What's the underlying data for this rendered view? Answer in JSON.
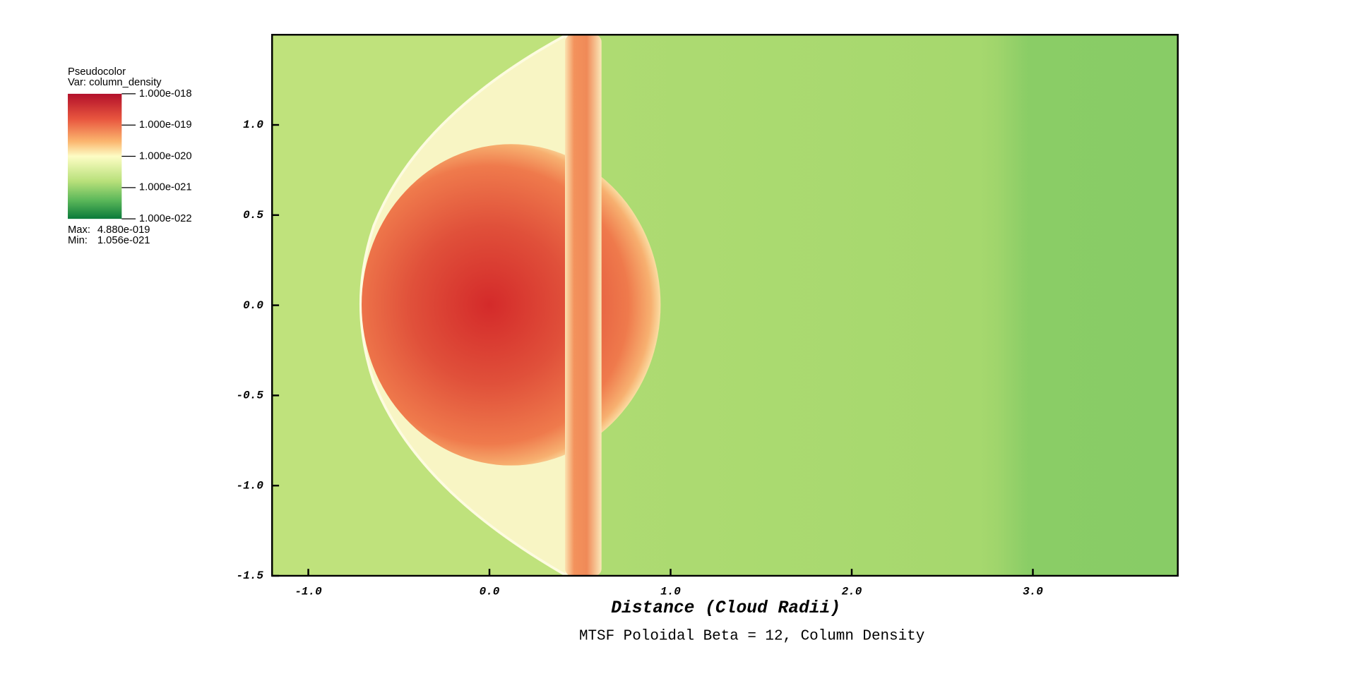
{
  "chart_data": {
    "type": "pseudocolor",
    "title": "MTSF Poloidal Beta = 12, Column Density",
    "xlabel": "Distance (Cloud Radii)",
    "xlim": [
      -1.2,
      3.8
    ],
    "ylim": [
      -1.5,
      1.5
    ],
    "xticks": [
      {
        "value": -1,
        "label": "-1.0"
      },
      {
        "value": 0,
        "label": "0.0"
      },
      {
        "value": 1,
        "label": "1.0"
      },
      {
        "value": 2,
        "label": "2.0"
      },
      {
        "value": 3,
        "label": "3.0"
      }
    ],
    "yticks": [
      {
        "value": -1.5,
        "label": "-1.5"
      },
      {
        "value": -1,
        "label": "-1.0"
      },
      {
        "value": -0.5,
        "label": "-0.5"
      },
      {
        "value": 0,
        "label": "0.0"
      },
      {
        "value": 0.5,
        "label": "0.5"
      },
      {
        "value": 1,
        "label": "1.0"
      }
    ],
    "legend": {
      "plot": "Pseudocolor",
      "variable": "Var: column_density",
      "log": true,
      "lim": [
        1e-22,
        1e-18
      ],
      "ticks": [
        {
          "value": 1e-18,
          "label": "1.000e-018"
        },
        {
          "value": 1e-19,
          "label": "1.000e-019"
        },
        {
          "value": 1e-20,
          "label": "1.000e-020"
        },
        {
          "value": 1e-21,
          "label": "1.000e-021"
        },
        {
          "value": 1e-22,
          "label": "1.000e-022"
        }
      ],
      "max_label": "Max:",
      "max": "4.880e-019",
      "min_label": "Min:",
      "min": "1.056e-021"
    }
  }
}
